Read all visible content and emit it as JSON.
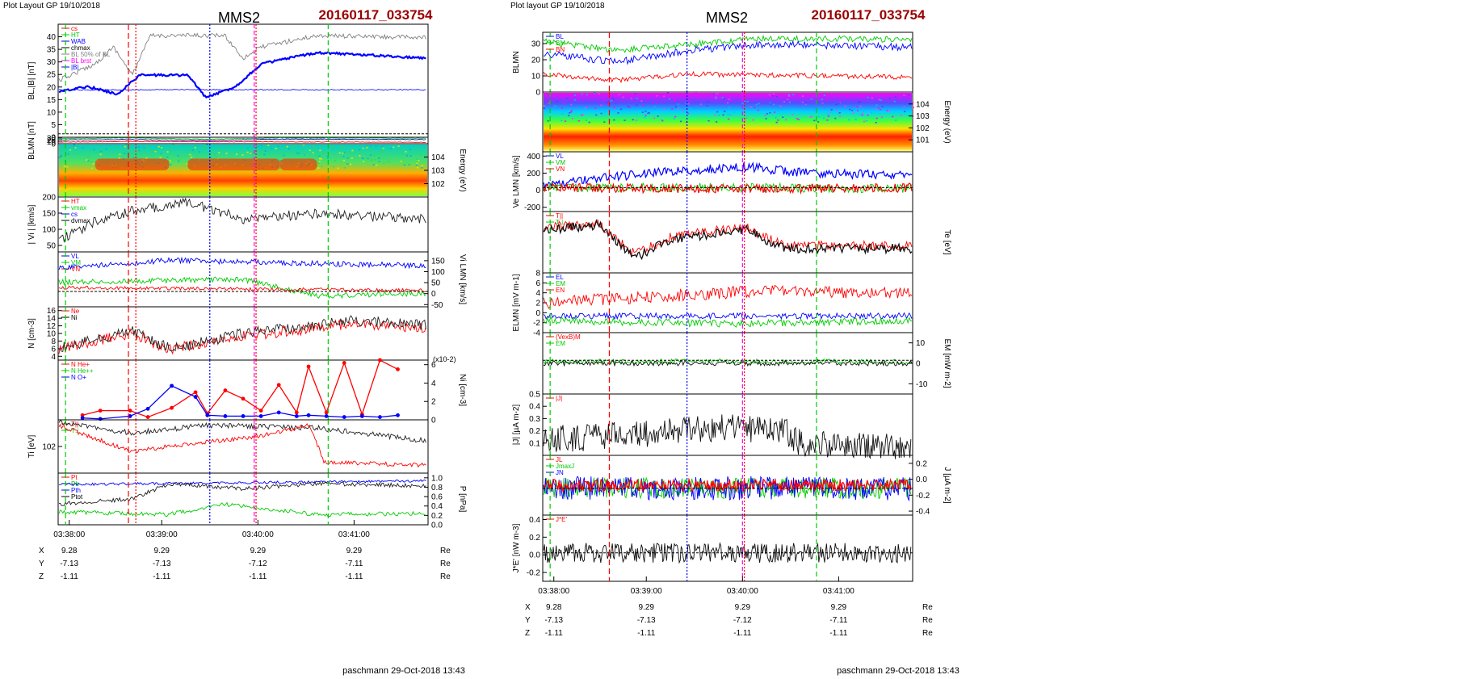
{
  "left": {
    "header": "Plot Layout GP 19/10/2018",
    "spacecraft": "MMS2",
    "event_id": "20160117_033754",
    "footer": "paschmann 29-Oct-2018 13:43",
    "time_ticks": [
      "03:38:00",
      "03:39:00",
      "03:40:00",
      "03:41:00"
    ],
    "coords": {
      "rows": [
        {
          "label": "X",
          "values": [
            "9.28",
            "9.29",
            "9.29",
            "9.29"
          ],
          "unit": "Re"
        },
        {
          "label": "Y",
          "values": [
            "-7.13",
            "-7.13",
            "-7.12",
            "-7.11"
          ],
          "unit": "Re"
        },
        {
          "label": "Z",
          "values": [
            "-1.11",
            "-1.11",
            "-1.11",
            "-1.11"
          ],
          "unit": "Re"
        }
      ]
    }
  },
  "right": {
    "header": "Plot layout GP 19/10/2018",
    "spacecraft": "MMS2",
    "event_id": "20160117_033754",
    "footer": "paschmann 29-Oct-2018 13:43",
    "time_ticks": [
      "03:38:00",
      "03:39:00",
      "03:40:00",
      "03:41:00"
    ],
    "coords": {
      "rows": [
        {
          "label": "X",
          "values": [
            "9.28",
            "9.29",
            "9.29",
            "9.29"
          ],
          "unit": "Re"
        },
        {
          "label": "Y",
          "values": [
            "-7.13",
            "-7.13",
            "-7.12",
            "-7.11"
          ],
          "unit": "Re"
        },
        {
          "label": "Z",
          "values": [
            "-1.11",
            "-1.11",
            "-1.11",
            "-1.11"
          ],
          "unit": "Re"
        }
      ]
    }
  },
  "chart_data": [
    {
      "type": "line",
      "side": "left",
      "ylabel": "BL,|B| [nT]",
      "yticks": [
        "0",
        "5",
        "10",
        "15",
        "20",
        "25",
        "30",
        "35",
        "40"
      ],
      "ylim": [
        0,
        45
      ],
      "legend": [
        "cs",
        "HT",
        "WAB",
        "chmax",
        "BL 50% of BL",
        "BL brst",
        "|B|"
      ]
    },
    {
      "type": "line",
      "side": "left",
      "ylabel": "BLMN [nT]",
      "yticks": [
        "0",
        "10",
        "20",
        "30"
      ],
      "ylim": [
        0,
        35
      ],
      "legend": [
        "BL",
        "BM",
        "BN"
      ]
    },
    {
      "type": "heatmap",
      "side": "left",
      "ylabel": "Energy (eV)",
      "yticks": [
        "10^2",
        "10^3",
        "10^4"
      ]
    },
    {
      "type": "line",
      "side": "left",
      "ylabel": "| Vi | [km/s]",
      "yticks": [
        "50",
        "100",
        "150",
        "200"
      ],
      "ylim": [
        30,
        200
      ],
      "legend": [
        "HT",
        "vmax",
        "cs",
        "dvmax"
      ]
    },
    {
      "type": "line",
      "side": "left",
      "ylabel": "Vi LMN [km/s]",
      "yticks": [
        "-50",
        "0",
        "50",
        "100",
        "150"
      ],
      "ylim": [
        -60,
        190
      ],
      "legend": [
        "VL",
        "VM",
        "VN"
      ]
    },
    {
      "type": "line",
      "side": "left",
      "ylabel": "N [cm-3]",
      "yticks": [
        "4",
        "6",
        "8",
        "10",
        "12",
        "14",
        "16"
      ],
      "ylim": [
        3,
        17
      ],
      "legend": [
        "Ne",
        "Ni"
      ]
    },
    {
      "type": "line",
      "side": "left",
      "ylabel": "Ni [cm-3]",
      "y_multiplier": "(x10-2)",
      "yticks": [
        "0",
        "2",
        "4",
        "6"
      ],
      "ylim": [
        0,
        6.5
      ],
      "legend": [
        "N He+",
        "N He++",
        "N O+"
      ],
      "series": [
        {
          "name": "N He++",
          "x": [
            0.3,
            0.6,
            1.1,
            1.4,
            1.8,
            2.2,
            2.4,
            2.7,
            3.0,
            3.3,
            3.6,
            3.9,
            4.1,
            4.4,
            4.7,
            5.0,
            5.3,
            5.6
          ],
          "values": [
            0.5,
            1.0,
            1.0,
            0.3,
            1.3,
            3.0,
            0.7,
            3.2,
            2.3,
            1.0,
            3.8,
            0.8,
            5.8,
            0.8,
            6.2,
            0.6,
            6.5,
            5.5
          ]
        },
        {
          "name": "N O+",
          "x": [
            0.3,
            0.6,
            1.1,
            1.4,
            1.8,
            2.2,
            2.4,
            2.7,
            3.0,
            3.3,
            3.6,
            3.9,
            4.1,
            4.4,
            4.7,
            5.0,
            5.3,
            5.6
          ],
          "values": [
            0.2,
            0.1,
            0.4,
            1.2,
            3.7,
            2.5,
            0.5,
            0.4,
            0.4,
            0.4,
            0.8,
            0.4,
            0.5,
            0.4,
            0.3,
            0.4,
            0.3,
            0.5
          ]
        }
      ]
    },
    {
      "type": "line",
      "side": "left",
      "ylabel": "Ti [eV]",
      "yticks": [
        "10^2"
      ],
      "legend": [
        "T||",
        "T⊥"
      ]
    },
    {
      "type": "line",
      "side": "left",
      "ylabel": "P [nPa]",
      "yticks": [
        "0.0",
        "0.2",
        "0.4",
        "0.6",
        "0.8",
        "1.0"
      ],
      "ylim": [
        0,
        1.1
      ],
      "legend": [
        "Pt",
        "Pb",
        "Pth",
        "Ptot"
      ]
    },
    {
      "type": "line",
      "side": "right",
      "ylabel": "BLMN",
      "yticks": [
        "0",
        "10",
        "20",
        "30"
      ],
      "ylim": [
        0,
        37
      ],
      "legend": [
        "BL",
        "BM",
        "BN"
      ]
    },
    {
      "type": "heatmap",
      "side": "right",
      "ylabel": "Energy (eV)",
      "yticks": [
        "10^1",
        "10^2",
        "10^3",
        "10^4"
      ]
    },
    {
      "type": "line",
      "side": "right",
      "ylabel": "Ve LMN [km/s]",
      "yticks": [
        "-200",
        "0",
        "200",
        "400"
      ],
      "ylim": [
        -250,
        450
      ],
      "legend": [
        "VL",
        "VM",
        "VN"
      ]
    },
    {
      "type": "line",
      "side": "right",
      "ylabel": "Te [eV]",
      "yticks": [],
      "legend": [
        "T||",
        "T⊥"
      ]
    },
    {
      "type": "line",
      "side": "right",
      "ylabel": "ELMN [mV m-1]",
      "yticks": [
        "-4",
        "-2",
        "0",
        "2",
        "4",
        "6",
        "8"
      ],
      "ylim": [
        -4,
        8
      ],
      "legend": [
        "EL",
        "EM",
        "EN"
      ]
    },
    {
      "type": "line",
      "side": "right",
      "ylabel": "EM [mW m-2]",
      "yticks": [
        "-10",
        "0",
        "10"
      ],
      "ylim": [
        -15,
        15
      ],
      "legend": [
        "(VexB)M",
        "EM"
      ]
    },
    {
      "type": "line",
      "side": "right",
      "ylabel": "|J| [µA m-2]",
      "yticks": [
        "0.1",
        "0.2",
        "0.3",
        "0.4",
        "0.5"
      ],
      "ylim": [
        0,
        0.5
      ],
      "legend": [
        "|J|"
      ]
    },
    {
      "type": "line",
      "side": "right",
      "ylabel": "J [µA m-2]",
      "yticks": [
        "-0.4",
        "-0.2",
        "0.0",
        "0.2"
      ],
      "ylim": [
        -0.45,
        0.3
      ],
      "legend": [
        "JL",
        "JmaxJ",
        "JN"
      ]
    },
    {
      "type": "line",
      "side": "right",
      "ylabel": "J*E' [nW m-3]",
      "yticks": [
        "-0.2",
        "0.0",
        "0.2",
        "0.4"
      ],
      "ylim": [
        -0.3,
        0.45
      ],
      "legend": [
        "J*E'"
      ]
    }
  ],
  "colors": {
    "blue": "#0000ff",
    "red": "#ff0000",
    "green": "#00cc00",
    "black": "#000000",
    "gray": "#808080",
    "magenta": "#ff00ff",
    "title_red": "#990000"
  }
}
